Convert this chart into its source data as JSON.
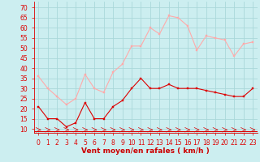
{
  "hours": [
    0,
    1,
    2,
    3,
    4,
    5,
    6,
    7,
    8,
    9,
    10,
    11,
    12,
    13,
    14,
    15,
    16,
    17,
    18,
    19,
    20,
    21,
    22,
    23
  ],
  "vent_moyen": [
    21,
    15,
    15,
    11,
    13,
    23,
    15,
    15,
    21,
    24,
    30,
    35,
    30,
    30,
    32,
    30,
    30,
    30,
    29,
    28,
    27,
    26,
    26,
    30
  ],
  "rafales": [
    36,
    30,
    26,
    22,
    25,
    37,
    30,
    28,
    38,
    42,
    51,
    51,
    60,
    57,
    66,
    65,
    61,
    49,
    56,
    55,
    54,
    46,
    52,
    53
  ],
  "bg_color": "#cceef0",
  "grid_color": "#aad8da",
  "line_color_moyen": "#dd0000",
  "line_color_rafales": "#ffaaaa",
  "xlabel": "Vent moyen/en rafales ( km/h )",
  "xlabel_color": "#cc0000",
  "xlabel_fontsize": 6.5,
  "yticks": [
    10,
    15,
    20,
    25,
    30,
    35,
    40,
    45,
    50,
    55,
    60,
    65,
    70
  ],
  "ylim": [
    8,
    73
  ],
  "xlim": [
    -0.5,
    23.5
  ],
  "tick_fontsize": 5.5,
  "marker_size": 2.0,
  "linewidth": 0.8
}
